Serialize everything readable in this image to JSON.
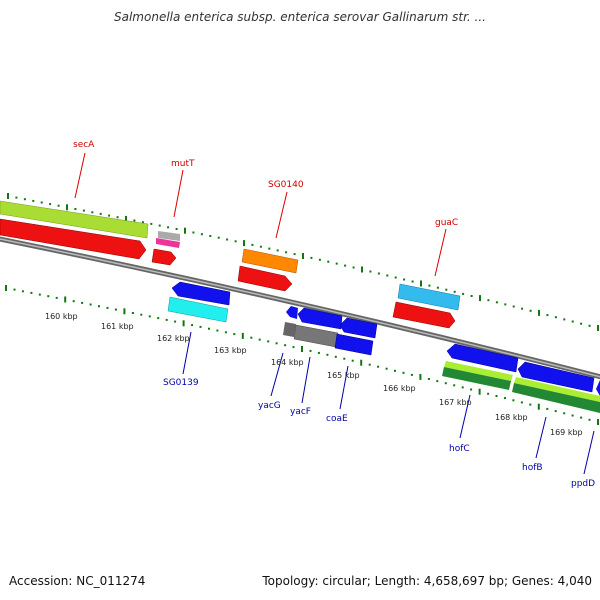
{
  "title": "Salmonella enterica subsp. enterica serovar Gallinarum str. ...",
  "footer": {
    "accession": "Accession: NC_011274",
    "summary": "Topology: circular; Length: 4,658,697 bp; Genes: 4,040"
  },
  "colors": {
    "top_strand_label": "#cc0000",
    "bottom_strand_label": "#0000aa",
    "tick": "#117711",
    "backbone": "#888888"
  },
  "scale_labels": [
    "160 kbp",
    "161 kbp",
    "162 kbp",
    "163 kbp",
    "164 kbp",
    "165 kbp",
    "166 kbp",
    "167 kbp",
    "168 kbp",
    "169 kbp"
  ],
  "gene_labels": {
    "top": [
      "secA",
      "mutT",
      "SG0140",
      "guaC"
    ],
    "bottom": [
      "SG0139",
      "yacG",
      "yacF",
      "coaE",
      "hofC",
      "hofB",
      "ppdD"
    ]
  }
}
